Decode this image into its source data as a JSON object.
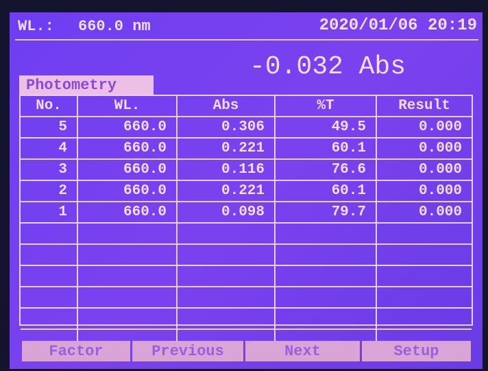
{
  "header": {
    "wavelength_label": "WL.:",
    "wavelength": "660.0 nm",
    "datetime": "2020/01/06 20:19"
  },
  "reading": "-0.032 Abs",
  "tab": "Photometry",
  "table": {
    "columns": [
      "No.",
      "WL.",
      "Abs",
      "%T",
      "Result"
    ],
    "rows": [
      [
        "5",
        "660.0",
        "0.306",
        "49.5",
        "0.000"
      ],
      [
        "4",
        "660.0",
        "0.221",
        "60.1",
        "0.000"
      ],
      [
        "3",
        "660.0",
        "0.116",
        "76.6",
        "0.000"
      ],
      [
        "2",
        "660.0",
        "0.221",
        "60.1",
        "0.000"
      ],
      [
        "1",
        "660.0",
        "0.098",
        "79.7",
        "0.000"
      ]
    ]
  },
  "buttons": [
    "Factor",
    "Previous",
    "Next",
    "Setup"
  ]
}
